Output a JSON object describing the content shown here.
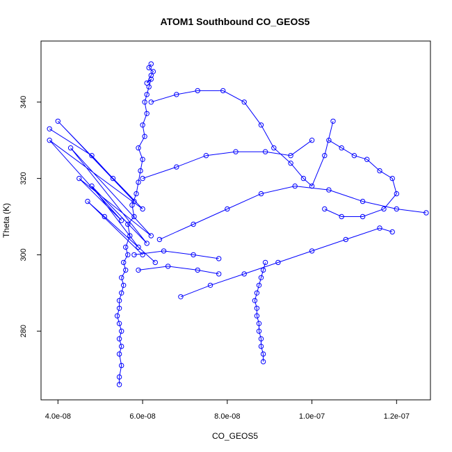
{
  "chart_data": {
    "type": "line",
    "title": "ATOM1 Southbound CO_GEOS5",
    "xlabel": "CO_GEOS5",
    "ylabel": "Theta (K)",
    "xlim": [
      3.6e-08,
      1.28e-07
    ],
    "ylim": [
      262,
      356
    ],
    "x_ticks": [
      4e-08,
      6e-08,
      8e-08,
      1e-07,
      1.2e-07
    ],
    "x_tick_labels": [
      "4.0e-08",
      "6.0e-08",
      "8.0e-08",
      "1.0e-07",
      "1.2e-07"
    ],
    "y_ticks": [
      280,
      300,
      320,
      340
    ],
    "y_tick_labels": [
      "280",
      "300",
      "320",
      "340"
    ],
    "markers": "open-circle",
    "grid": false,
    "color": "#0000ff",
    "series": [
      {
        "x": [
          5.45e-08,
          5.45e-08,
          5.5e-08,
          5.45e-08,
          5.5e-08,
          5.45e-08,
          5.5e-08,
          5.45e-08,
          5.4e-08,
          5.45e-08,
          5.45e-08,
          5.5e-08,
          5.55e-08,
          5.5e-08,
          5.6e-08,
          5.55e-08,
          5.65e-08,
          5.6e-08,
          5.7e-08,
          5.65e-08,
          5.8e-08,
          5.75e-08,
          5.85e-08,
          5.9e-08,
          5.95e-08,
          6e-08,
          5.9e-08,
          6.05e-08,
          6e-08,
          6.1e-08,
          6.05e-08,
          6.1e-08,
          6.15e-08,
          6.2e-08,
          6.1e-08,
          6.2e-08,
          6.25e-08,
          6.15e-08,
          6.2e-08
        ],
        "y": [
          266,
          268,
          271,
          274,
          276,
          278,
          280,
          282,
          284,
          286,
          288,
          290,
          292,
          294,
          296,
          298,
          300,
          302,
          305,
          308,
          310,
          313,
          316,
          319,
          322,
          325,
          328,
          331,
          334,
          337,
          340,
          342,
          344,
          346,
          345,
          347,
          348,
          349,
          350
        ]
      },
      {
        "x": [
          8.85e-08,
          8.85e-08,
          8.8e-08,
          8.8e-08,
          8.75e-08,
          8.75e-08,
          8.7e-08,
          8.7e-08,
          8.65e-08,
          8.7e-08,
          8.75e-08,
          8.8e-08,
          8.85e-08,
          8.9e-08
        ],
        "y": [
          272,
          274,
          276,
          278,
          280,
          282,
          284,
          286,
          288,
          290,
          292,
          294,
          296,
          298
        ]
      },
      {
        "x": [
          3.8e-08,
          4.8e-08,
          5.3e-08,
          5.8e-08,
          4e-08,
          6e-08,
          3.8e-08,
          5.5e-08,
          4.5e-08,
          6.2e-08,
          4.3e-08,
          6.1e-08,
          4.8e-08,
          5.9e-08,
          5.1e-08,
          6.3e-08,
          4.7e-08,
          6e-08
        ],
        "y": [
          333,
          326,
          320,
          314,
          335,
          312,
          330,
          309,
          320,
          305,
          328,
          303,
          318,
          302,
          310,
          298,
          314,
          300
        ]
      },
      {
        "x": [
          6.2e-08,
          6.8e-08,
          7.3e-08,
          7.9e-08,
          8.4e-08,
          8.8e-08,
          9.1e-08,
          9.5e-08,
          9.8e-08,
          1e-07,
          1.03e-07,
          1.05e-07
        ],
        "y": [
          340,
          342,
          343,
          343,
          340,
          334,
          328,
          324,
          320,
          318,
          326,
          335
        ]
      },
      {
        "x": [
          6.4e-08,
          7.2e-08,
          8e-08,
          8.8e-08,
          9.6e-08,
          1.04e-07,
          1.12e-07,
          1.2e-07,
          1.27e-07
        ],
        "y": [
          304,
          308,
          312,
          316,
          318,
          317,
          314,
          312,
          311
        ]
      },
      {
        "x": [
          6.9e-08,
          7.6e-08,
          8.4e-08,
          9.2e-08,
          1e-07,
          1.08e-07,
          1.16e-07,
          1.19e-07
        ],
        "y": [
          289,
          292,
          295,
          298,
          301,
          304,
          307,
          306
        ]
      },
      {
        "x": [
          1.04e-07,
          1.07e-07,
          1.1e-07,
          1.13e-07,
          1.16e-07,
          1.19e-07,
          1.2e-07,
          1.17e-07,
          1.12e-07,
          1.07e-07,
          1.03e-07
        ],
        "y": [
          330,
          328,
          326,
          325,
          322,
          320,
          316,
          312,
          310,
          310,
          312
        ]
      },
      {
        "x": [
          6e-08,
          6.8e-08,
          7.5e-08,
          8.2e-08,
          8.9e-08,
          9.5e-08,
          1e-07
        ],
        "y": [
          320,
          323,
          326,
          327,
          327,
          326,
          330
        ]
      },
      {
        "x": [
          5.8e-08,
          6.5e-08,
          7.2e-08,
          7.8e-08
        ],
        "y": [
          300,
          301,
          300,
          299
        ]
      },
      {
        "x": [
          5.9e-08,
          6.6e-08,
          7.3e-08,
          7.8e-08
        ],
        "y": [
          296,
          297,
          296,
          295
        ]
      }
    ]
  }
}
